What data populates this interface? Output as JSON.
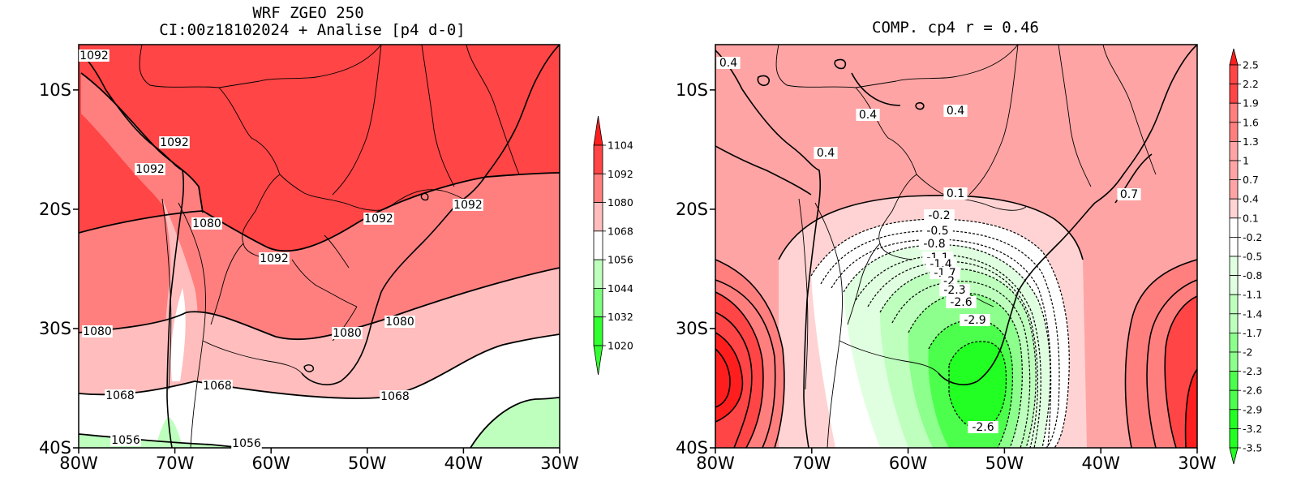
{
  "colors": {
    "z_1104": "#ff1e1e",
    "z_1092": "#ff4545",
    "z_1080": "#ff7f7f",
    "z_1068": "#ffbdbd",
    "z_1056": "#ffffff",
    "z_1044": "#beffbe",
    "z_1032": "#7dff7d",
    "z_1020": "#32ff32",
    "r_red3": "#ff1e1e",
    "r_red2": "#ff4545",
    "r_red1": "#ff7f7f",
    "r_pink": "#ffa4a4",
    "r_light": "#ffd3d3",
    "r_white": "#ffffff",
    "r_grn1": "#e0ffe0",
    "r_grn2": "#beffbe",
    "r_grn3": "#8cff8c",
    "r_grn4": "#4cff4c",
    "r_grn5": "#22ff22"
  },
  "left_panel": {
    "title_line1": "WRF ZGEO 250",
    "title_line2": "CI:00z18102024 + Analise  [p4 d-0]",
    "lat_ticks": [
      "10S",
      "20S",
      "30S",
      "40S"
    ],
    "lon_ticks": [
      "80W",
      "70W",
      "60W",
      "50W",
      "40W",
      "30W"
    ],
    "contour_labels": [
      "1092",
      "1092",
      "1092",
      "1092",
      "1092",
      "1092",
      "1080",
      "1080",
      "1080",
      "1080",
      "1068",
      "1068",
      "1068",
      "1056",
      "1056"
    ],
    "colorbar": {
      "labels": [
        "1104",
        "1092",
        "1080",
        "1068",
        "1056",
        "1044",
        "1032",
        "1020"
      ],
      "color_keys": [
        "z_1104",
        "z_1092",
        "z_1080",
        "z_1068",
        "z_1056",
        "z_1044",
        "z_1032",
        "z_1020"
      ]
    }
  },
  "right_panel": {
    "title": "COMP. cp4  r =  0.46",
    "lat_ticks": [
      "10S",
      "20S",
      "30S",
      "40S"
    ],
    "lon_ticks": [
      "80W",
      "70W",
      "60W",
      "50W",
      "40W",
      "30W"
    ],
    "contour_labels": [
      "0.4",
      "0.4",
      "0.4",
      "0.4",
      "0.1",
      "0.7",
      "-0.2",
      "-0.5",
      "-0.8",
      "-1.1",
      "-1.4",
      "-1.7",
      "-2",
      "-2.3",
      "-2.6",
      "-2.9",
      "-2.6"
    ],
    "colorbar": {
      "labels": [
        "2.5",
        "2.2",
        "1.9",
        "1.6",
        "1.3",
        "1",
        "0.7",
        "0.4",
        "0.1",
        "-0.2",
        "-0.5",
        "-0.8",
        "-1.1",
        "-1.4",
        "-1.7",
        "-2",
        "-2.3",
        "-2.6",
        "-2.9",
        "-3.2",
        "-3.5"
      ],
      "color_keys": [
        "r_red3",
        "r_red2",
        "r_red2",
        "r_red1",
        "r_red1",
        "r_pink",
        "r_pink",
        "r_pink",
        "r_light",
        "r_white",
        "r_white",
        "r_grn1",
        "r_grn1",
        "r_grn2",
        "r_grn2",
        "r_grn3",
        "r_grn3",
        "r_grn4",
        "r_grn4",
        "r_grn5",
        "r_grn5"
      ]
    }
  }
}
